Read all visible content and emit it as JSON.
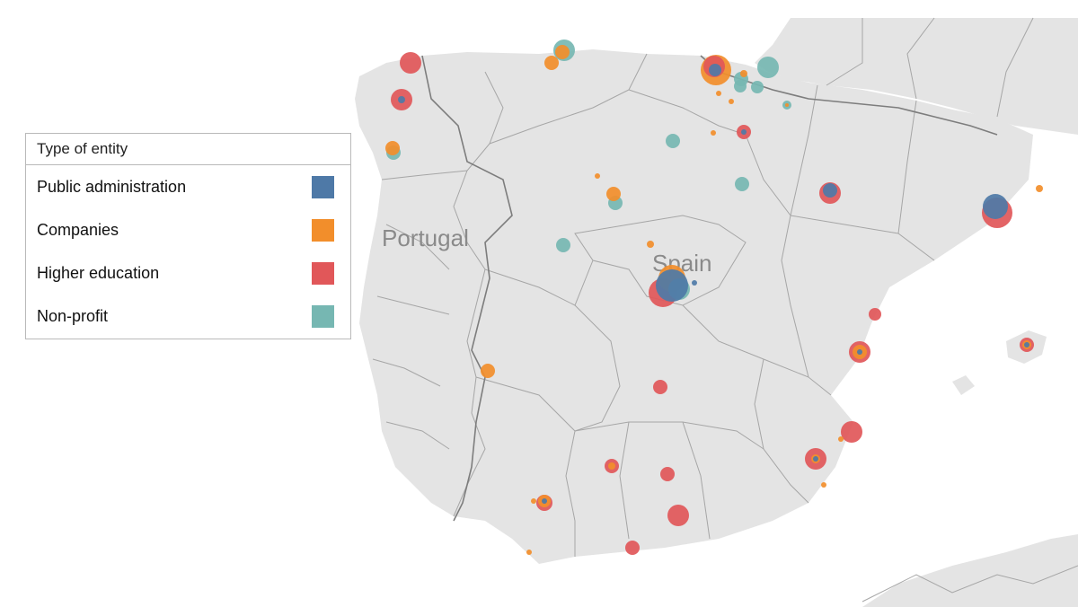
{
  "legend": {
    "title": "Type of entity",
    "items": [
      {
        "key": "public",
        "label": "Public administration",
        "color": "#4e79a7"
      },
      {
        "key": "companies",
        "label": "Companies",
        "color": "#f28e2b"
      },
      {
        "key": "higher",
        "label": "Higher education",
        "color": "#e15759"
      },
      {
        "key": "nonprofit",
        "label": "Non-profit",
        "color": "#76b7b2"
      }
    ]
  },
  "map": {
    "labels": {
      "portugal": "Portugal",
      "spain": "Spain"
    },
    "land_color": "#e4e4e4",
    "sea_color": "#ffffff",
    "border_color": "#9a9a9a"
  }
}
